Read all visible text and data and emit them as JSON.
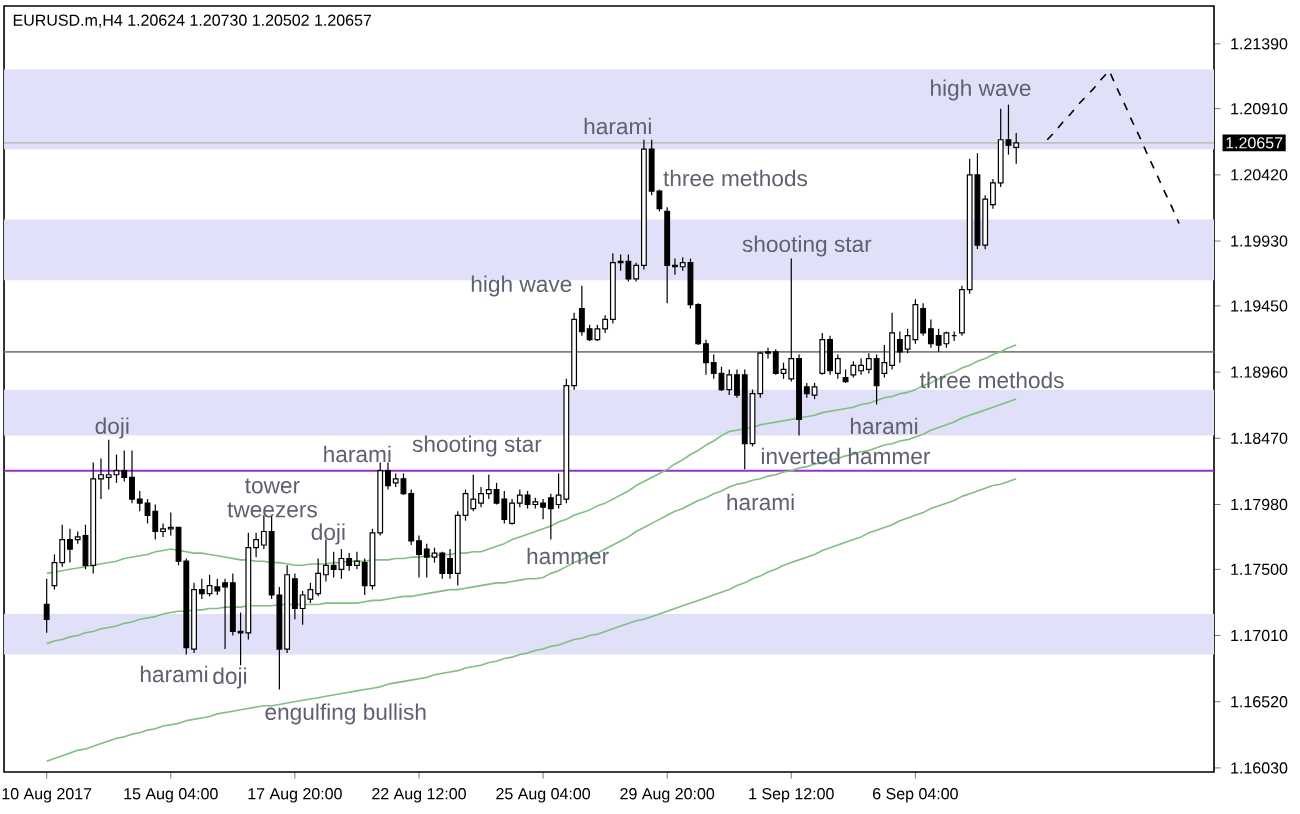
{
  "chart_data": {
    "type": "candlestick",
    "title": "EURUSD.m,H4  1.20624 1.20730 1.20502 1.20657",
    "color": "#000000",
    "categories": [
      "10 Aug 2017",
      null,
      null,
      null,
      null,
      null,
      null,
      null,
      null,
      null,
      null,
      null,
      null,
      null,
      null,
      null,
      "15 Aug 04:00",
      null,
      null,
      null,
      null,
      null,
      null,
      null,
      null,
      null,
      null,
      null,
      null,
      null,
      null,
      null,
      "17 Aug 20:00",
      null,
      null,
      null,
      null,
      null,
      null,
      null,
      null,
      null,
      null,
      null,
      null,
      null,
      null,
      null,
      "22 Aug 12:00",
      null,
      null,
      null,
      null,
      null,
      null,
      null,
      null,
      null,
      null,
      null,
      null,
      null,
      null,
      null,
      "25 Aug 04:00",
      null,
      null,
      null,
      null,
      null,
      null,
      null,
      null,
      null,
      null,
      null,
      null,
      null,
      null,
      null,
      "29 Aug 20:00",
      null,
      null,
      null,
      null,
      null,
      null,
      null,
      null,
      null,
      null,
      null,
      null,
      null,
      null,
      null,
      "1 Sep 12:00",
      null,
      null,
      null,
      null,
      null,
      null,
      null,
      null,
      null,
      null,
      null,
      null,
      null,
      null,
      null,
      "6 Sep 04:00",
      null,
      null,
      null,
      null,
      null,
      null,
      null,
      null,
      null,
      null,
      null,
      null,
      null,
      null,
      null,
      null,
      null,
      null,
      null,
      null,
      null,
      null,
      null,
      null,
      null,
      null,
      null,
      null,
      null,
      null,
      null,
      null,
      null,
      null,
      null,
      null,
      null,
      null
    ],
    "ohlc": [
      [
        1.1724,
        1.1743,
        1.1703,
        1.1713
      ],
      [
        1.1738,
        1.1761,
        1.1735,
        1.1755
      ],
      [
        1.1755,
        1.1783,
        1.1752,
        1.1772
      ],
      [
        1.1772,
        1.178,
        1.1755,
        1.1765
      ],
      [
        1.1772,
        1.1778,
        1.1769,
        1.1774
      ],
      [
        1.1775,
        1.1783,
        1.175,
        1.1753
      ],
      [
        1.1753,
        1.1829,
        1.1747,
        1.1817
      ],
      [
        1.1817,
        1.1832,
        1.1802,
        1.182
      ],
      [
        1.1818,
        1.1846,
        1.1809,
        1.182
      ],
      [
        1.182,
        1.1835,
        1.1814,
        1.1823
      ],
      [
        1.1823,
        1.1838,
        1.1815,
        1.1818
      ],
      [
        1.1818,
        1.1838,
        1.1799,
        1.1802
      ],
      [
        1.1802,
        1.1808,
        1.1793,
        1.1799
      ],
      [
        1.1799,
        1.1802,
        1.1784,
        1.179
      ],
      [
        1.1793,
        1.1798,
        1.1772,
        1.1778
      ],
      [
        1.1778,
        1.1784,
        1.1774,
        1.178
      ],
      [
        1.178,
        1.1792,
        1.1775,
        1.1781
      ],
      [
        1.1781,
        1.1781,
        1.1753,
        1.1756
      ],
      [
        1.1756,
        1.1758,
        1.1687,
        1.1692
      ],
      [
        1.1691,
        1.174,
        1.1688,
        1.1735
      ],
      [
        1.1735,
        1.1743,
        1.1728,
        1.1732
      ],
      [
        1.1732,
        1.1746,
        1.173,
        1.1738
      ],
      [
        1.1737,
        1.1743,
        1.1731,
        1.1734
      ],
      [
        1.174,
        1.1743,
        1.1691,
        1.1737
      ],
      [
        1.174,
        1.1747,
        1.1701,
        1.1704
      ],
      [
        1.1704,
        1.1718,
        1.1679,
        1.1703
      ],
      [
        1.1703,
        1.1777,
        1.1698,
        1.1766
      ],
      [
        1.1766,
        1.1777,
        1.1759,
        1.1772
      ],
      [
        1.1768,
        1.179,
        1.1765,
        1.1778
      ],
      [
        1.1778,
        1.179,
        1.1728,
        1.1731
      ],
      [
        1.1731,
        1.1737,
        1.1661,
        1.1691
      ],
      [
        1.1691,
        1.1753,
        1.1688,
        1.1746
      ],
      [
        1.1743,
        1.1747,
        1.1713,
        1.1721
      ],
      [
        1.1721,
        1.1734,
        1.1709,
        1.1731
      ],
      [
        1.1728,
        1.174,
        1.1725,
        1.1735
      ],
      [
        1.1732,
        1.1758,
        1.173,
        1.1747
      ],
      [
        1.1746,
        1.1772,
        1.1741,
        1.1753
      ],
      [
        1.1753,
        1.1763,
        1.1744,
        1.175
      ],
      [
        1.175,
        1.1765,
        1.1743,
        1.1758
      ],
      [
        1.1758,
        1.1762,
        1.1749,
        1.1753
      ],
      [
        1.1753,
        1.1763,
        1.175,
        1.1756
      ],
      [
        1.1755,
        1.1758,
        1.1731,
        1.1738
      ],
      [
        1.1738,
        1.178,
        1.1735,
        1.1777
      ],
      [
        1.1777,
        1.1829,
        1.1775,
        1.1823
      ],
      [
        1.1823,
        1.1829,
        1.1809,
        1.1812
      ],
      [
        1.1814,
        1.1821,
        1.1811,
        1.1817
      ],
      [
        1.1817,
        1.1821,
        1.1805,
        1.1806
      ],
      [
        1.1806,
        1.1809,
        1.1768,
        1.1771
      ],
      [
        1.1771,
        1.1775,
        1.1744,
        1.1761
      ],
      [
        1.1765,
        1.1769,
        1.1744,
        1.1759
      ],
      [
        1.1759,
        1.1766,
        1.1755,
        1.1762
      ],
      [
        1.1762,
        1.1763,
        1.1743,
        1.1747
      ],
      [
        1.1758,
        1.1765,
        1.1743,
        1.1747
      ],
      [
        1.1747,
        1.1793,
        1.1738,
        1.179
      ],
      [
        1.179,
        1.1809,
        1.1786,
        1.1806
      ],
      [
        1.1795,
        1.182,
        1.1793,
        1.1802
      ],
      [
        1.1799,
        1.1811,
        1.1796,
        1.1806
      ],
      [
        1.1806,
        1.182,
        1.1802,
        1.1809
      ],
      [
        1.1809,
        1.1814,
        1.1798,
        1.1799
      ],
      [
        1.1802,
        1.1808,
        1.1784,
        1.1787
      ],
      [
        1.1784,
        1.1802,
        1.1783,
        1.1799
      ],
      [
        1.1799,
        1.1809,
        1.1796,
        1.1805
      ],
      [
        1.1805,
        1.1808,
        1.1795,
        1.1798
      ],
      [
        1.1798,
        1.1803,
        1.1795,
        1.18
      ],
      [
        1.1799,
        1.1802,
        1.1787,
        1.1796
      ],
      [
        1.1803,
        1.1806,
        1.1772,
        1.1795
      ],
      [
        1.1798,
        1.1821,
        1.1795,
        1.1805
      ],
      [
        1.1802,
        1.1891,
        1.1799,
        1.1886
      ],
      [
        1.1886,
        1.194,
        1.1883,
        1.1935
      ],
      [
        1.1943,
        1.196,
        1.1923,
        1.1926
      ],
      [
        1.1928,
        1.1931,
        1.1919,
        1.192
      ],
      [
        1.192,
        1.1931,
        1.1919,
        1.1928
      ],
      [
        1.1928,
        1.1938,
        1.1925,
        1.1935
      ],
      [
        1.1935,
        1.1984,
        1.1932,
        1.1977
      ],
      [
        1.1977,
        1.1983,
        1.1971,
        1.1978
      ],
      [
        1.1978,
        1.1983,
        1.1963,
        1.1965
      ],
      [
        1.1965,
        1.1977,
        1.1963,
        1.1975
      ],
      [
        1.1975,
        1.2068,
        1.1972,
        1.2061
      ],
      [
        1.2061,
        1.2068,
        1.2027,
        1.203
      ],
      [
        1.203,
        1.2031,
        1.2015,
        1.2017
      ],
      [
        1.2015,
        1.2018,
        1.1947,
        1.1975
      ],
      [
        1.1975,
        1.198,
        1.1968,
        1.1974
      ],
      [
        1.1974,
        1.1981,
        1.1971,
        1.1977
      ],
      [
        1.1977,
        1.198,
        1.1943,
        1.1946
      ],
      [
        1.1946,
        1.1947,
        1.1916,
        1.1917
      ],
      [
        1.1917,
        1.192,
        1.1894,
        1.1903
      ],
      [
        1.1903,
        1.1909,
        1.1891,
        1.1895
      ],
      [
        1.1895,
        1.19,
        1.1882,
        1.1883
      ],
      [
        1.1883,
        1.1898,
        1.1879,
        1.1894
      ],
      [
        1.1894,
        1.1898,
        1.1877,
        1.1879
      ],
      [
        1.1894,
        1.1898,
        1.1824,
        1.1843
      ],
      [
        1.1843,
        1.1883,
        1.1841,
        1.188
      ],
      [
        1.188,
        1.1911,
        1.1877,
        1.191
      ],
      [
        1.191,
        1.1914,
        1.1906,
        1.1911
      ],
      [
        1.1911,
        1.1913,
        1.1894,
        1.1895
      ],
      [
        1.1895,
        1.1903,
        1.1891,
        1.1898
      ],
      [
        1.1891,
        1.198,
        1.1889,
        1.1906
      ],
      [
        1.1906,
        1.1909,
        1.1849,
        1.1861
      ],
      [
        1.1885,
        1.1888,
        1.1877,
        1.188
      ],
      [
        1.1879,
        1.1888,
        1.1876,
        1.1885
      ],
      [
        1.1895,
        1.1925,
        1.1894,
        1.192
      ],
      [
        1.192,
        1.1923,
        1.1894,
        1.1897
      ],
      [
        1.1895,
        1.1909,
        1.1891,
        1.1906
      ],
      [
        1.1892,
        1.1898,
        1.1888,
        1.1889
      ],
      [
        1.1894,
        1.1904,
        1.1892,
        1.1901
      ],
      [
        1.1897,
        1.1906,
        1.1894,
        1.1901
      ],
      [
        1.1898,
        1.191,
        1.1895,
        1.1906
      ],
      [
        1.1906,
        1.1909,
        1.1872,
        1.1886
      ],
      [
        1.1895,
        1.1916,
        1.1892,
        1.1903
      ],
      [
        1.1901,
        1.194,
        1.1898,
        1.1925
      ],
      [
        1.192,
        1.1926,
        1.1903,
        1.1911
      ],
      [
        1.1913,
        1.1928,
        1.191,
        1.1923
      ],
      [
        1.192,
        1.195,
        1.1917,
        1.1946
      ],
      [
        1.1943,
        1.1947,
        1.1923,
        1.1925
      ],
      [
        1.1928,
        1.1935,
        1.1914,
        1.1917
      ],
      [
        1.1923,
        1.1928,
        1.1911,
        1.1916
      ],
      [
        1.1917,
        1.1926,
        1.1914,
        1.1925
      ],
      [
        1.1923,
        1.1926,
        1.1919,
        1.1923
      ],
      [
        1.1925,
        1.196,
        1.1923,
        1.1957
      ],
      [
        1.1957,
        1.2054,
        1.1954,
        1.2042
      ],
      [
        1.2042,
        1.2058,
        1.1987,
        1.199
      ],
      [
        1.199,
        1.2027,
        1.1987,
        1.2024
      ],
      [
        1.202,
        1.2039,
        1.2017,
        1.2036
      ],
      [
        1.2036,
        1.2091,
        1.2033,
        1.2068
      ],
      [
        1.2068,
        1.2094,
        1.2057,
        1.2064
      ],
      [
        1.20624,
        1.2073,
        1.20502,
        1.20657
      ],
      null,
      null,
      null,
      null,
      null,
      null,
      null,
      null,
      null,
      null,
      null,
      null,
      null,
      null,
      null,
      null,
      null,
      null,
      null,
      null,
      null,
      null,
      null,
      null,
      null
    ],
    "series": [
      {
        "type": "line",
        "color": "#7fbf7f",
        "values": [
          1.1747,
          1.1748,
          1.1749,
          1.175,
          1.1751,
          1.1752,
          1.1753,
          1.1754,
          1.1755,
          1.1756,
          1.1758,
          1.1759,
          1.176,
          1.1761,
          1.1763,
          1.1764,
          1.1765,
          1.1764,
          1.1763,
          1.1762,
          1.1762,
          1.1761,
          1.176,
          1.1759,
          1.1758,
          1.1757,
          1.1757,
          1.1756,
          1.1756,
          1.1755,
          1.1755,
          1.1754,
          1.1753,
          1.1753,
          1.1754,
          1.1754,
          1.1754,
          1.1755,
          1.1755,
          1.1756,
          1.1756,
          1.1756,
          1.1757,
          1.1757,
          1.1757,
          1.1758,
          1.1758,
          1.1759,
          1.1759,
          1.176,
          1.176,
          1.1761,
          1.1761,
          1.1762,
          1.1762,
          1.1763,
          1.1763,
          1.1765,
          1.1767,
          1.1769,
          1.1772,
          1.1774,
          1.1776,
          1.1778,
          1.178,
          1.1782,
          1.1785,
          1.1787,
          1.179,
          1.1792,
          1.1794,
          1.1797,
          1.1799,
          1.1802,
          1.1805,
          1.1808,
          1.1812,
          1.1815,
          1.1818,
          1.1821,
          1.1824,
          1.1828,
          1.1831,
          1.1835,
          1.1838,
          1.1842,
          1.1845,
          1.1849,
          1.1852,
          1.1853,
          1.1854,
          1.1855,
          1.1857,
          1.1858,
          1.1859,
          1.186,
          1.1861,
          1.1862,
          1.1863,
          1.1864,
          1.1866,
          1.1867,
          1.1868,
          1.1869,
          1.187,
          1.1872,
          1.1873,
          1.1875,
          1.1877,
          1.1878,
          1.188,
          1.1881,
          1.1883,
          1.1886,
          1.1888,
          1.1891,
          1.1894,
          1.1896,
          1.1899,
          1.1901,
          1.1904,
          1.1906,
          1.1909,
          1.1911,
          1.1914,
          1.1916,
          null,
          null,
          null,
          null,
          null,
          null,
          null,
          null,
          null,
          null,
          null,
          null,
          null,
          null,
          null,
          null,
          null,
          null,
          null,
          null,
          null,
          null,
          null,
          null,
          null
        ]
      },
      {
        "type": "line",
        "color": "#7fbf7f",
        "values": [
          1.1695,
          1.1697,
          1.1698,
          1.17,
          1.1701,
          1.1703,
          1.1704,
          1.1706,
          1.1707,
          1.1708,
          1.171,
          1.1711,
          1.1713,
          1.1714,
          1.1715,
          1.1717,
          1.1718,
          1.1719,
          1.1719,
          1.172,
          1.172,
          1.1721,
          1.1721,
          1.1722,
          1.1722,
          1.1722,
          1.1723,
          1.1723,
          1.1723,
          1.1723,
          1.1724,
          1.1724,
          1.1724,
          1.1724,
          1.1724,
          1.1724,
          1.1725,
          1.1725,
          1.1725,
          1.1725,
          1.1725,
          1.1726,
          1.1727,
          1.1727,
          1.1728,
          1.1729,
          1.173,
          1.173,
          1.1731,
          1.1732,
          1.1733,
          1.1734,
          1.1735,
          1.1735,
          1.1736,
          1.1737,
          1.1738,
          1.1739,
          1.174,
          1.174,
          1.1741,
          1.1742,
          1.1743,
          1.1743,
          1.1744,
          1.1747,
          1.1749,
          1.1752,
          1.1755,
          1.1757,
          1.176,
          1.1762,
          1.1765,
          1.1768,
          1.1771,
          1.1774,
          1.1778,
          1.1781,
          1.1784,
          1.1787,
          1.179,
          1.1793,
          1.1795,
          1.1798,
          1.1801,
          1.1803,
          1.1806,
          1.1808,
          1.1811,
          1.1813,
          1.1814,
          1.1816,
          1.1817,
          1.1819,
          1.182,
          1.1822,
          1.1823,
          1.1825,
          1.1826,
          1.1828,
          1.1829,
          1.1831,
          1.1832,
          1.1834,
          1.1835,
          1.1837,
          1.1838,
          1.184,
          1.1842,
          1.1843,
          1.1845,
          1.1846,
          1.1848,
          1.185,
          1.1853,
          1.1855,
          1.1857,
          1.1859,
          1.1862,
          1.1864,
          1.1866,
          1.1868,
          1.187,
          1.1872,
          1.1874,
          1.1876,
          null,
          null,
          null,
          null,
          null,
          null,
          null,
          null,
          null,
          null,
          null,
          null,
          null,
          null,
          null,
          null,
          null,
          null,
          null,
          null,
          null,
          null,
          null,
          null,
          null
        ]
      },
      {
        "type": "line",
        "color": "#7fbf7f",
        "values": [
          1.1608,
          1.161,
          1.1612,
          1.1614,
          1.1616,
          1.1617,
          1.1619,
          1.1621,
          1.1623,
          1.1625,
          1.1626,
          1.1628,
          1.1629,
          1.1631,
          1.1632,
          1.1634,
          1.1635,
          1.1636,
          1.1638,
          1.1639,
          1.164,
          1.1641,
          1.1643,
          1.1644,
          1.1645,
          1.1646,
          1.1647,
          1.1648,
          1.1649,
          1.1649,
          1.165,
          1.1651,
          1.1652,
          1.1653,
          1.1654,
          1.1655,
          1.1656,
          1.1657,
          1.1658,
          1.1659,
          1.166,
          1.1661,
          1.1662,
          1.1663,
          1.1665,
          1.1666,
          1.1667,
          1.1668,
          1.1669,
          1.167,
          1.1672,
          1.1673,
          1.1674,
          1.1675,
          1.1677,
          1.1678,
          1.1679,
          1.1681,
          1.1682,
          1.1684,
          1.1685,
          1.1687,
          1.1688,
          1.169,
          1.1691,
          1.1693,
          1.1694,
          1.1696,
          1.1698,
          1.1699,
          1.1701,
          1.1702,
          1.1704,
          1.1706,
          1.1708,
          1.171,
          1.1712,
          1.1713,
          1.1715,
          1.1717,
          1.1719,
          1.1721,
          1.1723,
          1.1725,
          1.1727,
          1.1729,
          1.1731,
          1.1733,
          1.1735,
          1.1738,
          1.174,
          1.1743,
          1.1745,
          1.1748,
          1.175,
          1.1753,
          1.1755,
          1.1757,
          1.1759,
          1.1761,
          1.1764,
          1.1766,
          1.1768,
          1.177,
          1.1772,
          1.1774,
          1.1777,
          1.1779,
          1.1781,
          1.1783,
          1.1786,
          1.1788,
          1.179,
          1.1792,
          1.1795,
          1.1797,
          1.1799,
          1.1801,
          1.1804,
          1.1806,
          1.1808,
          1.181,
          1.1812,
          1.1813,
          1.1815,
          1.1817,
          null,
          null,
          null,
          null,
          null,
          null,
          null,
          null,
          null,
          null,
          null,
          null,
          null,
          null,
          null,
          null,
          null,
          null,
          null,
          null,
          null,
          null,
          null,
          null,
          null
        ]
      },
      {
        "type": "line",
        "color": "#000000",
        "line_style": "dashed",
        "values": [
          null,
          null,
          null,
          null,
          null,
          null,
          null,
          null,
          null,
          null,
          null,
          null,
          null,
          null,
          null,
          null,
          null,
          null,
          null,
          null,
          null,
          null,
          null,
          null,
          null,
          null,
          null,
          null,
          null,
          null,
          null,
          null,
          null,
          null,
          null,
          null,
          null,
          null,
          null,
          null,
          null,
          null,
          null,
          null,
          null,
          null,
          null,
          null,
          null,
          null,
          null,
          null,
          null,
          null,
          null,
          null,
          null,
          null,
          null,
          null,
          null,
          null,
          null,
          null,
          null,
          null,
          null,
          null,
          null,
          null,
          null,
          null,
          null,
          null,
          null,
          null,
          null,
          null,
          null,
          null,
          null,
          null,
          null,
          null,
          null,
          null,
          null,
          null,
          null,
          null,
          null,
          null,
          null,
          null,
          null,
          null,
          null,
          null,
          null,
          null,
          null,
          null,
          null,
          null,
          null,
          null,
          null,
          null,
          null,
          null,
          null,
          null,
          null,
          null,
          null,
          null,
          null,
          null,
          null,
          null,
          null,
          null,
          null,
          null,
          null,
          null,
          null,
          null,
          null,
          1.2068,
          1.2074,
          1.2081,
          1.2087,
          1.2094,
          1.21,
          1.2106,
          1.2113,
          1.2119,
          1.2106,
          1.2094,
          1.2081,
          1.2069,
          1.2056,
          1.2044,
          1.2031,
          1.2019,
          1.2006,
          null,
          null,
          null,
          null
        ]
      }
    ],
    "ylim": [
      1.16,
      1.2167
    ],
    "yticks": [
      {
        "value": 1.2139,
        "label": "1.21390"
      },
      {
        "value": 1.2091,
        "label": "1.20910"
      },
      {
        "value": 1.2042,
        "label": "1.20420"
      },
      {
        "value": 1.1993,
        "label": "1.19930"
      },
      {
        "value": 1.1945,
        "label": "1.19450"
      },
      {
        "value": 1.1896,
        "label": "1.18960"
      },
      {
        "value": 1.1847,
        "label": "1.18470"
      },
      {
        "value": 1.1798,
        "label": "1.17980"
      },
      {
        "value": 1.175,
        "label": "1.17500"
      },
      {
        "value": 1.1701,
        "label": "1.17010"
      },
      {
        "value": 1.1652,
        "label": "1.16520"
      },
      {
        "value": 1.1603,
        "label": "1.16030"
      }
    ],
    "bands": [
      {
        "axis": "y",
        "from": 1.2061,
        "to": 1.212,
        "color": "#e0e0f8"
      },
      {
        "axis": "y",
        "from": 1.1964,
        "to": 1.2009,
        "color": "#e0e0f8"
      },
      {
        "axis": "y",
        "from": 1.1849,
        "to": 1.1883,
        "color": "#e0e0f8"
      },
      {
        "axis": "y",
        "from": 1.1687,
        "to": 1.1717,
        "color": "#e0e0f8"
      }
    ],
    "ref_lines": [
      {
        "axis": "y",
        "value": 1.20657,
        "label": "1.20657",
        "color": "#c0c0c0"
      },
      {
        "axis": "y",
        "value": 1.1911,
        "color": "#808080"
      },
      {
        "axis": "y",
        "value": 1.1823,
        "color": "#9932cc"
      }
    ],
    "annotations": [
      "doji",
      "tower tweezers",
      {
        "text": "harami",
        "y": 1.1829
      },
      "shooting star",
      "doji",
      "hammer",
      {
        "text": "harami",
        "y": 1.1687
      },
      "doji",
      "engulfing bullish",
      {
        "text": "high wave",
        "y": 1.196
      },
      "harami",
      "three methods",
      "shooting star",
      "harami",
      {
        "text": "inverted hammer",
        "y": 1.1824
      },
      "harami",
      "three methods",
      "high wave"
    ]
  }
}
